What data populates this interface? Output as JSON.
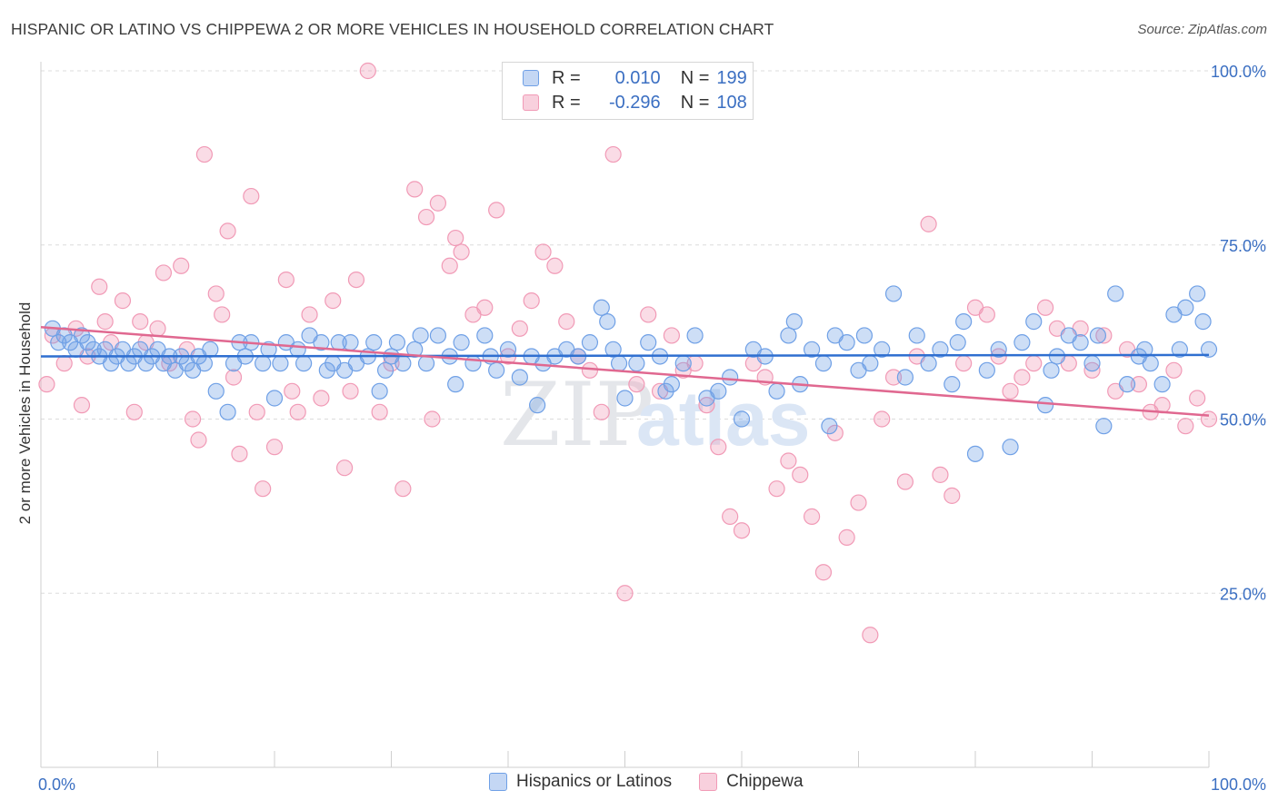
{
  "title": "HISPANIC OR LATINO VS CHIPPEWA 2 OR MORE VEHICLES IN HOUSEHOLD CORRELATION CHART",
  "source": "Source: ZipAtlas.com",
  "watermark": {
    "zip": "ZIP",
    "atlas": "atlas"
  },
  "legend": {
    "rows": [
      {
        "r_label": "R =",
        "r_value": "0.010",
        "n_label": "N =",
        "n_value": "199"
      },
      {
        "r_label": "R =",
        "r_value": "-0.296",
        "n_label": "N =",
        "n_value": "108"
      }
    ]
  },
  "bottom_legend": [
    "Hispanics or Latinos",
    "Chippewa"
  ],
  "chart_data": {
    "type": "scatter",
    "xlabel": "",
    "ylabel": "2 or more Vehicles in Household",
    "xlim": [
      0,
      100
    ],
    "ylim": [
      0,
      100
    ],
    "x_tick_labels": [
      "0.0%",
      "100.0%"
    ],
    "y_tick_labels": [
      "25.0%",
      "50.0%",
      "75.0%",
      "100.0%"
    ],
    "y_ticks": [
      25,
      50,
      75,
      100
    ],
    "grid": true,
    "colors": {
      "blue": "#6fa0e6",
      "blue_line": "#2f6fd0",
      "pink": "#f19ab6",
      "pink_line": "#e06890",
      "axis_text": "#3b6fc2"
    },
    "series": [
      {
        "name": "Hispanics or Latinos",
        "trend": [
          [
            0,
            59.0
          ],
          [
            100,
            59.2
          ]
        ],
        "points": [
          [
            1,
            63
          ],
          [
            1.5,
            61
          ],
          [
            2,
            62
          ],
          [
            2.5,
            61
          ],
          [
            3,
            60
          ],
          [
            3.5,
            62
          ],
          [
            4,
            61
          ],
          [
            4.5,
            60
          ],
          [
            5,
            59
          ],
          [
            5.5,
            60
          ],
          [
            6,
            58
          ],
          [
            6.5,
            59
          ],
          [
            7,
            60
          ],
          [
            7.5,
            58
          ],
          [
            8,
            59
          ],
          [
            8.5,
            60
          ],
          [
            9,
            58
          ],
          [
            9.5,
            59
          ],
          [
            10,
            60
          ],
          [
            10.5,
            58
          ],
          [
            11,
            59
          ],
          [
            11.5,
            57
          ],
          [
            12,
            59
          ],
          [
            12.5,
            58
          ],
          [
            13,
            57
          ],
          [
            13.5,
            59
          ],
          [
            14,
            58
          ],
          [
            14.5,
            60
          ],
          [
            15,
            54
          ],
          [
            16,
            51
          ],
          [
            16.5,
            58
          ],
          [
            17,
            61
          ],
          [
            17.5,
            59
          ],
          [
            18,
            61
          ],
          [
            19,
            58
          ],
          [
            19.5,
            60
          ],
          [
            20,
            53
          ],
          [
            20.5,
            58
          ],
          [
            21,
            61
          ],
          [
            22,
            60
          ],
          [
            22.5,
            58
          ],
          [
            23,
            62
          ],
          [
            24,
            61
          ],
          [
            24.5,
            57
          ],
          [
            25,
            58
          ],
          [
            25.5,
            61
          ],
          [
            26,
            57
          ],
          [
            26.5,
            61
          ],
          [
            27,
            58
          ],
          [
            28,
            59
          ],
          [
            28.5,
            61
          ],
          [
            29,
            54
          ],
          [
            29.5,
            57
          ],
          [
            30,
            59
          ],
          [
            30.5,
            61
          ],
          [
            31,
            58
          ],
          [
            32,
            60
          ],
          [
            32.5,
            62
          ],
          [
            33,
            58
          ],
          [
            34,
            62
          ],
          [
            35,
            59
          ],
          [
            35.5,
            55
          ],
          [
            36,
            61
          ],
          [
            37,
            58
          ],
          [
            38,
            62
          ],
          [
            38.5,
            59
          ],
          [
            39,
            57
          ],
          [
            40,
            60
          ],
          [
            41,
            56
          ],
          [
            42,
            59
          ],
          [
            42.5,
            52
          ],
          [
            43,
            58
          ],
          [
            44,
            59
          ],
          [
            45,
            60
          ],
          [
            46,
            59
          ],
          [
            47,
            61
          ],
          [
            48,
            66
          ],
          [
            48.5,
            64
          ],
          [
            49,
            60
          ],
          [
            49.5,
            58
          ],
          [
            50,
            53
          ],
          [
            51,
            58
          ],
          [
            52,
            61
          ],
          [
            53,
            59
          ],
          [
            53.5,
            54
          ],
          [
            54,
            55
          ],
          [
            55,
            58
          ],
          [
            56,
            62
          ],
          [
            57,
            53
          ],
          [
            58,
            54
          ],
          [
            59,
            56
          ],
          [
            60,
            50
          ],
          [
            61,
            60
          ],
          [
            62,
            59
          ],
          [
            63,
            54
          ],
          [
            64,
            62
          ],
          [
            64.5,
            64
          ],
          [
            65,
            55
          ],
          [
            66,
            60
          ],
          [
            67,
            58
          ],
          [
            67.5,
            49
          ],
          [
            68,
            62
          ],
          [
            69,
            61
          ],
          [
            70,
            57
          ],
          [
            70.5,
            62
          ],
          [
            71,
            58
          ],
          [
            72,
            60
          ],
          [
            73,
            68
          ],
          [
            74,
            56
          ],
          [
            75,
            62
          ],
          [
            76,
            58
          ],
          [
            77,
            60
          ],
          [
            78,
            55
          ],
          [
            78.5,
            61
          ],
          [
            79,
            64
          ],
          [
            80,
            45
          ],
          [
            81,
            57
          ],
          [
            82,
            60
          ],
          [
            83,
            46
          ],
          [
            84,
            61
          ],
          [
            85,
            64
          ],
          [
            86,
            52
          ],
          [
            86.5,
            57
          ],
          [
            87,
            59
          ],
          [
            88,
            62
          ],
          [
            89,
            61
          ],
          [
            90,
            58
          ],
          [
            90.5,
            62
          ],
          [
            91,
            49
          ],
          [
            92,
            68
          ],
          [
            93,
            55
          ],
          [
            94,
            59
          ],
          [
            94.5,
            60
          ],
          [
            95,
            58
          ],
          [
            96,
            55
          ],
          [
            97,
            65
          ],
          [
            97.5,
            60
          ],
          [
            98,
            66
          ],
          [
            99,
            68
          ],
          [
            99.5,
            64
          ],
          [
            100,
            60
          ]
        ]
      },
      {
        "name": "Chippewa",
        "trend": [
          [
            0,
            63.2
          ],
          [
            100,
            50.5
          ]
        ],
        "points": [
          [
            0.5,
            55
          ],
          [
            1,
            62
          ],
          [
            2,
            58
          ],
          [
            3,
            63
          ],
          [
            3.5,
            52
          ],
          [
            4,
            59
          ],
          [
            5,
            69
          ],
          [
            5.5,
            64
          ],
          [
            6,
            61
          ],
          [
            7,
            67
          ],
          [
            8,
            51
          ],
          [
            8.5,
            64
          ],
          [
            9,
            61
          ],
          [
            10,
            63
          ],
          [
            10.5,
            71
          ],
          [
            11,
            58
          ],
          [
            12,
            72
          ],
          [
            12.5,
            60
          ],
          [
            13,
            50
          ],
          [
            13.5,
            47
          ],
          [
            14,
            88
          ],
          [
            15,
            68
          ],
          [
            15.5,
            65
          ],
          [
            16,
            77
          ],
          [
            16.5,
            56
          ],
          [
            17,
            45
          ],
          [
            18,
            82
          ],
          [
            18.5,
            51
          ],
          [
            19,
            40
          ],
          [
            20,
            46
          ],
          [
            21,
            70
          ],
          [
            21.5,
            54
          ],
          [
            22,
            51
          ],
          [
            23,
            65
          ],
          [
            24,
            53
          ],
          [
            25,
            67
          ],
          [
            26,
            43
          ],
          [
            26.5,
            54
          ],
          [
            27,
            70
          ],
          [
            28,
            100
          ],
          [
            29,
            51
          ],
          [
            30,
            58
          ],
          [
            31,
            40
          ],
          [
            32,
            83
          ],
          [
            33,
            79
          ],
          [
            33.5,
            50
          ],
          [
            34,
            81
          ],
          [
            35,
            72
          ],
          [
            35.5,
            76
          ],
          [
            36,
            74
          ],
          [
            37,
            65
          ],
          [
            38,
            66
          ],
          [
            39,
            80
          ],
          [
            40,
            59
          ],
          [
            41,
            63
          ],
          [
            42,
            67
          ],
          [
            43,
            74
          ],
          [
            44,
            72
          ],
          [
            45,
            64
          ],
          [
            46,
            59
          ],
          [
            47,
            57
          ],
          [
            48,
            51
          ],
          [
            49,
            88
          ],
          [
            50,
            25
          ],
          [
            51,
            55
          ],
          [
            52,
            65
          ],
          [
            53,
            54
          ],
          [
            54,
            62
          ],
          [
            55,
            57
          ],
          [
            56,
            58
          ],
          [
            57,
            52
          ],
          [
            58,
            46
          ],
          [
            59,
            36
          ],
          [
            60,
            34
          ],
          [
            61,
            58
          ],
          [
            62,
            56
          ],
          [
            63,
            40
          ],
          [
            64,
            44
          ],
          [
            65,
            42
          ],
          [
            66,
            36
          ],
          [
            67,
            28
          ],
          [
            68,
            48
          ],
          [
            69,
            33
          ],
          [
            70,
            38
          ],
          [
            71,
            19
          ],
          [
            72,
            50
          ],
          [
            73,
            56
          ],
          [
            74,
            41
          ],
          [
            75,
            59
          ],
          [
            76,
            78
          ],
          [
            77,
            42
          ],
          [
            78,
            39
          ],
          [
            79,
            58
          ],
          [
            80,
            66
          ],
          [
            81,
            65
          ],
          [
            82,
            59
          ],
          [
            83,
            54
          ],
          [
            84,
            56
          ],
          [
            85,
            58
          ],
          [
            86,
            66
          ],
          [
            87,
            63
          ],
          [
            88,
            58
          ],
          [
            89,
            63
          ],
          [
            90,
            57
          ],
          [
            91,
            62
          ],
          [
            92,
            54
          ],
          [
            93,
            60
          ],
          [
            94,
            55
          ],
          [
            95,
            51
          ],
          [
            96,
            52
          ],
          [
            97,
            57
          ],
          [
            98,
            49
          ],
          [
            99,
            53
          ],
          [
            100,
            50
          ]
        ]
      }
    ]
  }
}
